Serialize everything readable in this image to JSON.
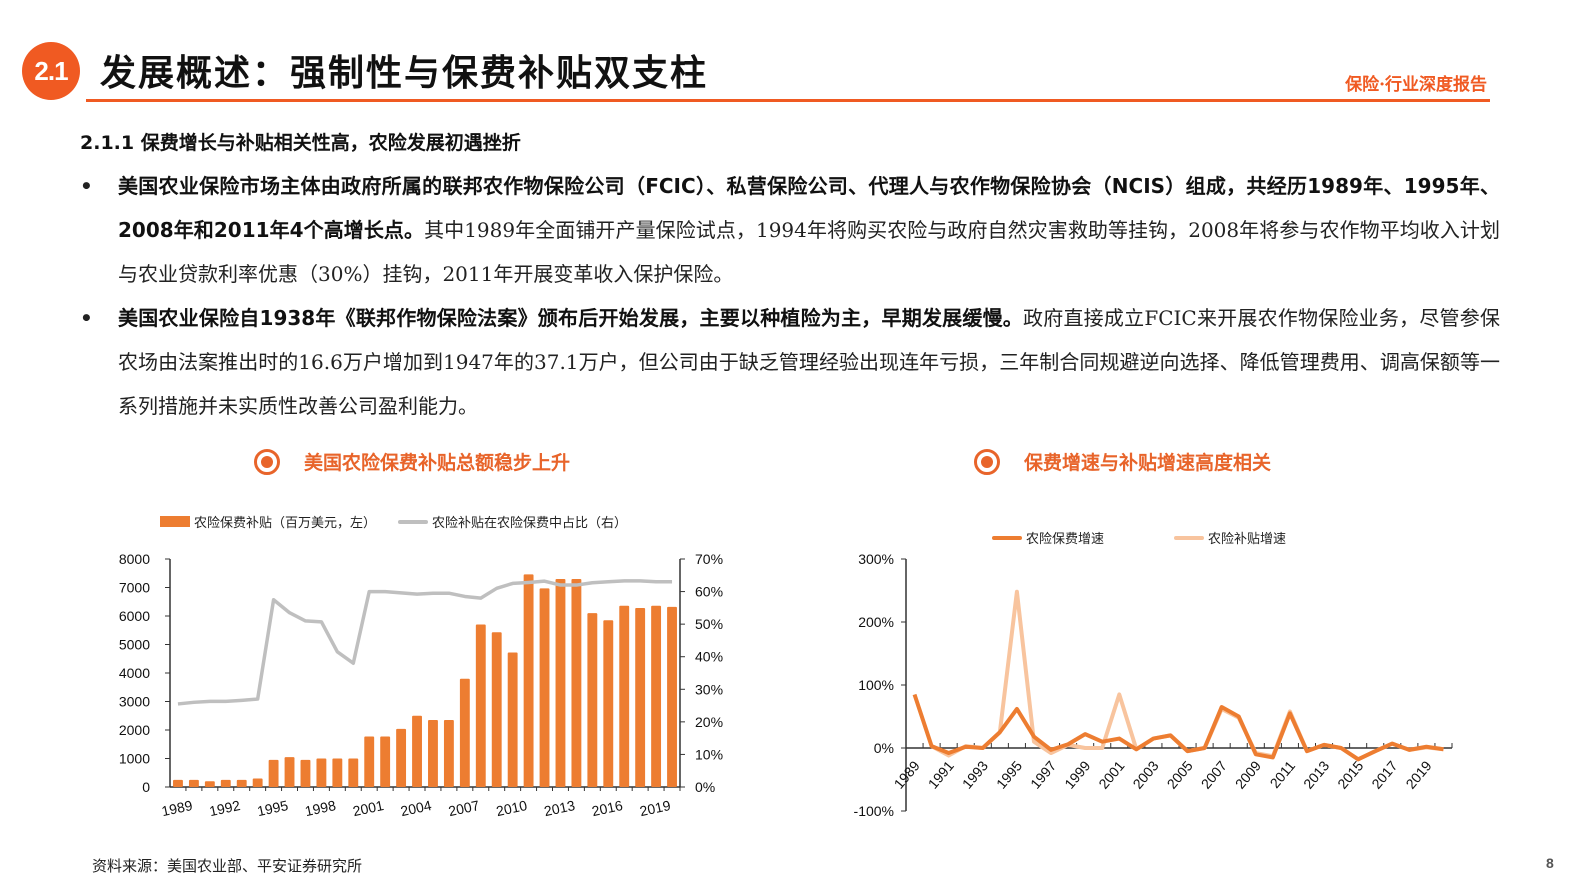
{
  "header": {
    "section_number": "2.1",
    "title": "发展概述：强制性与保费补贴双支柱",
    "report_tag": "保险·行业深度报告",
    "accent_color": "#f05a22"
  },
  "subheading": "2.1.1 保费增长与补贴相关性高，农险发展初遇挫折",
  "bullets": [
    {
      "bold": "美国农业保险市场主体由政府所属的联邦农作物保险公司（FCIC）、私营保险公司、代理人与农作物保险协会（NCIS）组成，共经历1989年、1995年、2008年和2011年4个高增长点。",
      "normal": "其中1989年全面铺开产量保险试点，1994年将购买农险与政府自然灾害救助等挂钩，2008年将参与农作物平均收入计划与农业贷款利率优惠（30%）挂钩，2011年开展变革收入保护保险。"
    },
    {
      "bold": "美国农业保险自1938年《联邦作物保险法案》颁布后开始发展，主要以种植险为主，早期发展缓慢。",
      "normal": "政府直接成立FCIC来开展农作物保险业务，尽管参保农场由法案推出时的16.6万户增加到1947年的37.1万户，但公司由于缺乏管理经验出现连年亏损，三年制合同规避逆向选择、降低管理费用、调高保额等一系列措施并未实质性改善公司盈利能力。"
    }
  ],
  "charts": {
    "left": {
      "title": "美国农险保费补贴总额稳步上升",
      "legend_bar": "农险保费补贴（百万美元，左）",
      "legend_line": "农险补贴在农险保费中占比（右）"
    },
    "right": {
      "title": "保费增速与补贴增速高度相关",
      "legend_premium": "农险保费增速",
      "legend_subsidy": "农险补贴增速"
    }
  },
  "chart_data": [
    {
      "type": "bar",
      "title": "美国农险保费补贴总额稳步上升",
      "categories": [
        "1989",
        "1990",
        "1991",
        "1992",
        "1993",
        "1994",
        "1995",
        "1996",
        "1997",
        "1998",
        "1999",
        "2000",
        "2001",
        "2002",
        "2003",
        "2004",
        "2005",
        "2006",
        "2007",
        "2008",
        "2009",
        "2010",
        "2011",
        "2012",
        "2013",
        "2014",
        "2015",
        "2016",
        "2017",
        "2018",
        "2019",
        "2020"
      ],
      "x_tick_labels": [
        "1989",
        "1992",
        "1995",
        "1998",
        "2001",
        "2004",
        "2007",
        "2010",
        "2013",
        "2016",
        "2019"
      ],
      "series": [
        {
          "name": "农险保费补贴（百万美元，左）",
          "type": "bar",
          "axis": "left",
          "color": "#ed7d31",
          "values": [
            250,
            250,
            200,
            250,
            250,
            300,
            950,
            1050,
            950,
            1000,
            1000,
            1000,
            1770,
            1770,
            2040,
            2500,
            2350,
            2350,
            3800,
            5700,
            5430,
            4720,
            7460,
            6970,
            7300,
            7300,
            6100,
            5850,
            6360,
            6280,
            6360,
            6320
          ]
        },
        {
          "name": "农险补贴在农险保费中占比（右）",
          "type": "line",
          "axis": "right",
          "color": "#bfbfbf",
          "values": [
            25.5,
            26,
            26.3,
            26.3,
            26.6,
            27,
            57.5,
            53.5,
            51,
            50.7,
            41.5,
            38,
            60,
            60,
            59.6,
            59.2,
            59.5,
            59.5,
            58.5,
            58,
            61,
            62.5,
            62.8,
            63.2,
            62,
            62,
            62.7,
            63,
            63.3,
            63.3,
            63,
            63
          ]
        }
      ],
      "ylim_left": [
        0,
        8000
      ],
      "yticks_left": [
        "0",
        "1000",
        "2000",
        "3000",
        "4000",
        "5000",
        "6000",
        "7000",
        "8000"
      ],
      "ylim_right": [
        0,
        70
      ],
      "yticks_right": [
        "0%",
        "10%",
        "20%",
        "30%",
        "40%",
        "50%",
        "60%",
        "70%"
      ],
      "legend_position": "top",
      "grid": false
    },
    {
      "type": "line",
      "title": "保费增速与补贴增速高度相关",
      "categories": [
        "1989",
        "1990",
        "1991",
        "1992",
        "1993",
        "1994",
        "1995",
        "1996",
        "1997",
        "1998",
        "1999",
        "2000",
        "2001",
        "2002",
        "2003",
        "2004",
        "2005",
        "2006",
        "2007",
        "2008",
        "2009",
        "2010",
        "2011",
        "2012",
        "2013",
        "2014",
        "2015",
        "2016",
        "2017",
        "2018",
        "2019",
        "2020"
      ],
      "x_tick_labels": [
        "1989",
        "1991",
        "1993",
        "1995",
        "1997",
        "1999",
        "2001",
        "2003",
        "2005",
        "2007",
        "2009",
        "2011",
        "2013",
        "2015",
        "2017",
        "2019"
      ],
      "series": [
        {
          "name": "农险保费增速",
          "color": "#ed7d31",
          "values": [
            85,
            3,
            -8,
            2,
            0,
            25,
            62,
            18,
            -3,
            6,
            22,
            10,
            15,
            -2,
            15,
            20,
            -5,
            0,
            65,
            50,
            -10,
            -15,
            55,
            -5,
            5,
            0,
            -18,
            -5,
            7,
            -3,
            2,
            -2
          ]
        },
        {
          "name": "农险补贴增速",
          "color": "#f8c49e",
          "values": [
            null,
            3,
            -12,
            3,
            0,
            25,
            248,
            10,
            -8,
            5,
            0,
            0,
            85,
            -2,
            15,
            20,
            -5,
            0,
            62,
            48,
            -8,
            -13,
            58,
            -5,
            5,
            0,
            -18,
            -5,
            7,
            -3,
            1,
            -2
          ]
        }
      ],
      "ylim": [
        -100,
        300
      ],
      "yticks": [
        "-100%",
        "0%",
        "100%",
        "200%",
        "300%"
      ],
      "legend_position": "top",
      "grid": false
    }
  ],
  "footer": {
    "source": "资料来源：美国农业部、平安证券研究所",
    "page_number": "8"
  }
}
